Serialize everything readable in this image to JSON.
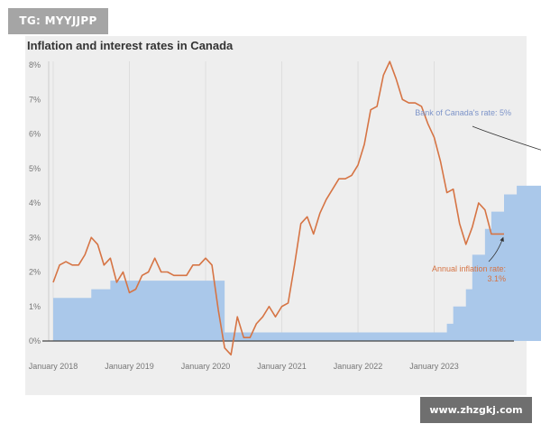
{
  "watermarks": {
    "top_left": "TG: MYYJJPP",
    "bottom_right": "www.zhzgkj.com"
  },
  "colors": {
    "card_bg": "#eeeeee",
    "rate_fill": "#aac8ea",
    "inflation_line": "#d67444",
    "grid": "#dddddd",
    "axis": "#444444"
  },
  "chart_data": {
    "type": "line",
    "title": "Inflation and interest rates in Canada",
    "y_ticks": [
      "0%",
      "1%",
      "2%",
      "3%",
      "4%",
      "5%",
      "6%",
      "7%",
      "8%"
    ],
    "ylim": [
      0,
      8
    ],
    "x_ticks": [
      {
        "label": "January 2018",
        "date": "2018-01"
      },
      {
        "label": "January 2019",
        "date": "2019-01"
      },
      {
        "label": "January 2020",
        "date": "2020-01"
      },
      {
        "label": "January 2021",
        "date": "2021-01"
      },
      {
        "label": "January 2022",
        "date": "2022-01"
      },
      {
        "label": "January 2023",
        "date": "2023-01"
      }
    ],
    "xlim": [
      "2018-01",
      "2023-12"
    ],
    "grid": "vertical",
    "series": [
      {
        "kind": "step-area",
        "start": "2018-01",
        "values": [
          1.25,
          1.25,
          1.25,
          1.25,
          1.25,
          1.25,
          1.5,
          1.5,
          1.5,
          1.75,
          1.75,
          1.75,
          1.75,
          1.75,
          1.75,
          1.75,
          1.75,
          1.75,
          1.75,
          1.75,
          1.75,
          1.75,
          1.75,
          1.75,
          1.75,
          1.75,
          1.75,
          0.25,
          0.25,
          0.25,
          0.25,
          0.25,
          0.25,
          0.25,
          0.25,
          0.25,
          0.25,
          0.25,
          0.25,
          0.25,
          0.25,
          0.25,
          0.25,
          0.25,
          0.25,
          0.25,
          0.25,
          0.25,
          0.25,
          0.25,
          0.25,
          0.25,
          0.25,
          0.25,
          0.25,
          0.25,
          0.25,
          0.25,
          0.25,
          0.25,
          0.25,
          0.25,
          0.5,
          1.0,
          1.0,
          1.5,
          2.5,
          2.5,
          3.25,
          3.75,
          3.75,
          4.25,
          4.25,
          4.5,
          4.5,
          4.5,
          4.5,
          4.75,
          5.0,
          5.0,
          5.0,
          5.0,
          5.0,
          5.0
        ]
      },
      {
        "kind": "line",
        "start": "2018-01",
        "values": [
          1.7,
          2.2,
          2.3,
          2.2,
          2.2,
          2.5,
          3.0,
          2.8,
          2.2,
          2.4,
          1.7,
          2.0,
          1.4,
          1.5,
          1.9,
          2.0,
          2.4,
          2.0,
          2.0,
          1.9,
          1.9,
          1.9,
          2.2,
          2.2,
          2.4,
          2.2,
          0.9,
          -0.2,
          -0.4,
          0.7,
          0.1,
          0.1,
          0.5,
          0.7,
          1.0,
          0.7,
          1.0,
          1.1,
          2.2,
          3.4,
          3.6,
          3.1,
          3.7,
          4.1,
          4.4,
          4.7,
          4.7,
          4.8,
          5.1,
          5.7,
          6.7,
          6.8,
          7.7,
          8.1,
          7.6,
          7.0,
          6.9,
          6.9,
          6.8,
          6.3,
          5.9,
          5.2,
          4.3,
          4.4,
          3.4,
          2.8,
          3.3,
          4.0,
          3.8,
          3.1,
          3.1,
          3.1
        ]
      }
    ],
    "annotations": [
      {
        "series": 0,
        "text": "Bank of Canada's rate: 5%",
        "lines": [
          "Bank of Canada's rate: 5%"
        ]
      },
      {
        "series": 1,
        "text": "Annual inflation rate: 3.1%",
        "lines": [
          "Annual inflation rate:",
          "3.1%"
        ]
      }
    ]
  }
}
